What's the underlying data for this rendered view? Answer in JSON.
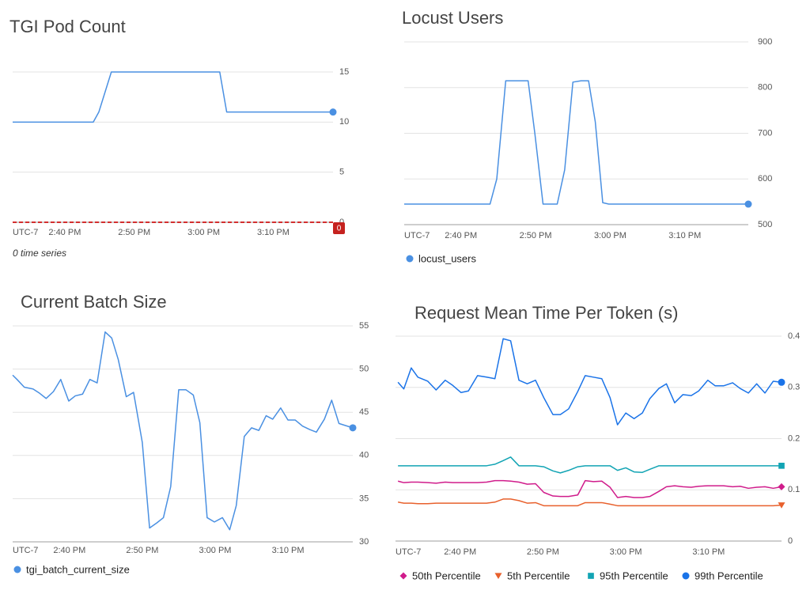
{
  "chart_data": [
    {
      "type": "line",
      "title": "TGI Pod Count",
      "note": "0 time series",
      "timezone": "UTC-7",
      "x": [
        32.5,
        44.1,
        44.9,
        46.7,
        62.3,
        63.3,
        78.6
      ],
      "values": [
        10,
        10,
        11,
        15,
        15,
        11,
        11
      ],
      "color": "#4a90e2",
      "marker": "circle",
      "xlim": [
        32.5,
        78.6
      ],
      "xticks": [
        {
          "value": 40,
          "label": "2:40 PM"
        },
        {
          "value": 50,
          "label": "2:50 PM"
        },
        {
          "value": 60,
          "label": "3:00 PM"
        },
        {
          "value": 70,
          "label": "3:10 PM"
        }
      ],
      "ylim": [
        0,
        15
      ],
      "yticks": [
        0,
        5,
        10,
        15
      ],
      "grid": true,
      "threshold": 0
    },
    {
      "type": "line",
      "title": "Locust Users",
      "timezone": "UTC-7",
      "x": [
        32.4,
        43.9,
        44.8,
        46.0,
        49.0,
        49.9,
        51.0,
        52.9,
        53.9,
        55.0,
        56.1,
        57.1,
        58.0,
        59.0,
        59.8,
        78.5
      ],
      "series": [
        {
          "name": "locust_users",
          "color": "#4a90e2",
          "marker": "circle",
          "values": [
            545,
            545,
            600,
            815,
            815,
            700,
            545,
            545,
            620,
            812,
            815,
            815,
            725,
            548,
            545,
            545
          ]
        }
      ],
      "xlim": [
        32.4,
        78.5
      ],
      "xticks": [
        {
          "value": 40,
          "label": "2:40 PM"
        },
        {
          "value": 50,
          "label": "2:50 PM"
        },
        {
          "value": 60,
          "label": "3:00 PM"
        },
        {
          "value": 70,
          "label": "3:10 PM"
        }
      ],
      "ylim": [
        500,
        900
      ],
      "yticks": [
        500,
        600,
        700,
        800,
        900
      ],
      "grid": true
    },
    {
      "type": "line",
      "title": "Current Batch Size",
      "timezone": "UTC-7",
      "x": [
        32.2,
        32.8,
        33.8,
        35.0,
        35.9,
        36.8,
        37.8,
        38.8,
        39.9,
        40.8,
        41.8,
        42.8,
        43.8,
        44.9,
        45.8,
        46.7,
        47.8,
        48.8,
        50.0,
        51.0,
        52.0,
        52.9,
        53.9,
        55.0,
        56.0,
        57.0,
        57.9,
        58.9,
        59.9,
        61.0,
        62.0,
        62.9,
        64.0,
        65.0,
        66.0,
        67.0,
        67.9,
        69.0,
        70.0,
        71.0,
        72.0,
        73.0,
        73.9,
        75.0,
        76.0,
        77.0,
        78.9
      ],
      "series": [
        {
          "name": "tgi_batch_current_size",
          "color": "#4a90e2",
          "marker": "circle",
          "values": [
            49.3,
            48.8,
            47.9,
            47.7,
            47.2,
            46.6,
            47.4,
            48.8,
            46.3,
            46.9,
            47.1,
            48.8,
            48.4,
            54.3,
            53.6,
            51.1,
            46.8,
            47.3,
            41.5,
            31.6,
            32.2,
            32.8,
            36.4,
            47.6,
            47.6,
            47.0,
            43.8,
            32.8,
            32.3,
            32.8,
            31.4,
            34.2,
            42.2,
            43.2,
            42.9,
            44.6,
            44.2,
            45.5,
            44.1,
            44.1,
            43.4,
            43.0,
            42.7,
            44.2,
            46.4,
            43.7,
            43.2
          ]
        }
      ],
      "xlim": [
        32.2,
        78.9
      ],
      "xticks": [
        {
          "value": 40,
          "label": "2:40 PM"
        },
        {
          "value": 50,
          "label": "2:50 PM"
        },
        {
          "value": 60,
          "label": "3:00 PM"
        },
        {
          "value": 70,
          "label": "3:10 PM"
        }
      ],
      "ylim": [
        30,
        55
      ],
      "yticks": [
        30,
        35,
        40,
        45,
        50,
        55
      ],
      "grid": true
    },
    {
      "type": "line",
      "title": "Request Mean Time Per Token (s)",
      "timezone": "UTC-7",
      "x": [
        32.5,
        33.2,
        34.1,
        34.9,
        36.1,
        37.1,
        38.2,
        39.1,
        40.1,
        41.0,
        42.1,
        43.2,
        44.2,
        45.2,
        46.1,
        47.1,
        48.1,
        49.1,
        50.1,
        51.2,
        52.1,
        53.1,
        54.2,
        55.1,
        56.1,
        57.1,
        58.1,
        59.0,
        60.0,
        61.0,
        62.0,
        62.9,
        64.0,
        64.9,
        65.9,
        66.9,
        67.9,
        68.8,
        69.9,
        70.8,
        71.8,
        72.9,
        73.8,
        74.8,
        75.8,
        76.8,
        77.8,
        78.8
      ],
      "series": [
        {
          "name": "50th Percentile",
          "color": "#d01c8b",
          "marker": "diamond",
          "values": [
            0.117,
            0.114,
            0.115,
            0.115,
            0.114,
            0.113,
            0.115,
            0.114,
            0.114,
            0.114,
            0.114,
            0.115,
            0.118,
            0.118,
            0.117,
            0.115,
            0.111,
            0.112,
            0.095,
            0.088,
            0.087,
            0.087,
            0.09,
            0.118,
            0.116,
            0.117,
            0.105,
            0.085,
            0.087,
            0.085,
            0.085,
            0.087,
            0.097,
            0.106,
            0.108,
            0.106,
            0.105,
            0.107,
            0.108,
            0.108,
            0.108,
            0.106,
            0.107,
            0.103,
            0.105,
            0.106,
            0.103,
            0.106
          ]
        },
        {
          "name": "5th Percentile",
          "color": "#e8602c",
          "marker": "triangle",
          "values": [
            0.076,
            0.074,
            0.074,
            0.073,
            0.073,
            0.074,
            0.074,
            0.074,
            0.074,
            0.074,
            0.074,
            0.074,
            0.076,
            0.082,
            0.082,
            0.079,
            0.074,
            0.075,
            0.069,
            0.069,
            0.069,
            0.069,
            0.069,
            0.075,
            0.075,
            0.075,
            0.072,
            0.069,
            0.069,
            0.069,
            0.069,
            0.069,
            0.069,
            0.069,
            0.069,
            0.069,
            0.069,
            0.069,
            0.069,
            0.069,
            0.069,
            0.069,
            0.069,
            0.069,
            0.069,
            0.069,
            0.069,
            0.07
          ]
        },
        {
          "name": "95th Percentile",
          "color": "#12a4b4",
          "marker": "square",
          "values": [
            0.147,
            0.147,
            0.147,
            0.147,
            0.147,
            0.147,
            0.147,
            0.147,
            0.147,
            0.147,
            0.147,
            0.147,
            0.15,
            0.157,
            0.164,
            0.147,
            0.147,
            0.147,
            0.145,
            0.137,
            0.133,
            0.138,
            0.145,
            0.147,
            0.147,
            0.147,
            0.147,
            0.138,
            0.143,
            0.135,
            0.134,
            0.14,
            0.147,
            0.147,
            0.147,
            0.147,
            0.147,
            0.147,
            0.147,
            0.147,
            0.147,
            0.147,
            0.147,
            0.147,
            0.147,
            0.147,
            0.147,
            0.147
          ]
        },
        {
          "name": "99th Percentile",
          "color": "#1a73e8",
          "marker": "circle",
          "values": [
            0.31,
            0.297,
            0.338,
            0.32,
            0.312,
            0.295,
            0.314,
            0.304,
            0.29,
            0.293,
            0.323,
            0.32,
            0.317,
            0.395,
            0.391,
            0.314,
            0.307,
            0.314,
            0.28,
            0.247,
            0.247,
            0.258,
            0.292,
            0.323,
            0.32,
            0.317,
            0.28,
            0.227,
            0.25,
            0.239,
            0.25,
            0.278,
            0.298,
            0.307,
            0.27,
            0.286,
            0.284,
            0.293,
            0.314,
            0.303,
            0.303,
            0.309,
            0.298,
            0.289,
            0.307,
            0.289,
            0.312,
            0.31
          ]
        }
      ],
      "xlim": [
        32.2,
        78.8
      ],
      "xticks": [
        {
          "value": 40,
          "label": "2:40 PM"
        },
        {
          "value": 50,
          "label": "2:50 PM"
        },
        {
          "value": 60,
          "label": "3:00 PM"
        },
        {
          "value": 70,
          "label": "3:10 PM"
        }
      ],
      "ylim": [
        0,
        0.4
      ],
      "yticks": [
        0,
        0.1,
        0.2,
        0.3,
        0.4
      ],
      "grid": true
    }
  ]
}
